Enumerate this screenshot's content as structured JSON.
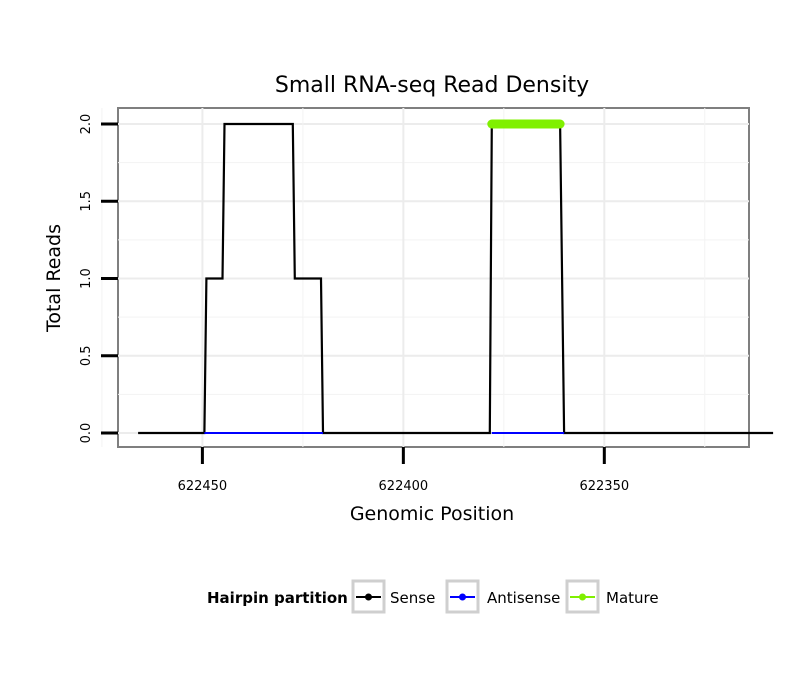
{
  "chart_data": {
    "type": "line",
    "title": "Small RNA-seq Read Density",
    "xlabel": "Genomic Position",
    "ylabel": "Total Reads",
    "x_reversed": true,
    "xlim": [
      622471,
      622314
    ],
    "ylim": [
      0,
      2
    ],
    "x_ticks": [
      622450,
      622400,
      622350
    ],
    "x_tick_labels": [
      "622450",
      "622400",
      "622350"
    ],
    "y_ticks": [
      0,
      0.5,
      1,
      1.5,
      2
    ],
    "y_tick_labels": [
      "0.0",
      "0.5",
      "1.0",
      "1.5",
      "2.0"
    ],
    "grid": true,
    "legend_title": "Hairpin partition",
    "legend_position": "bottom",
    "series": [
      {
        "name": "Sense",
        "color": "#000000",
        "x": [
          622466,
          622449.5,
          622449,
          622445,
          622444.5,
          622427.5,
          622427,
          622420.5,
          622420,
          622378.5,
          622378,
          622361,
          622360,
          622308
        ],
        "values": [
          0,
          0,
          1,
          1,
          2,
          2,
          1,
          1,
          0,
          0,
          2,
          2,
          0,
          0
        ]
      },
      {
        "name": "Antisense",
        "color": "#0000ff",
        "x": [
          622449.5,
          622420,
          622378,
          622360
        ],
        "values": [
          0,
          0,
          0,
          0
        ],
        "segments": [
          [
            0,
            1
          ],
          [
            2,
            3
          ]
        ]
      },
      {
        "name": "Mature",
        "color": "#80f000",
        "x": [
          622378,
          622361
        ],
        "values": [
          2,
          2
        ]
      }
    ]
  }
}
